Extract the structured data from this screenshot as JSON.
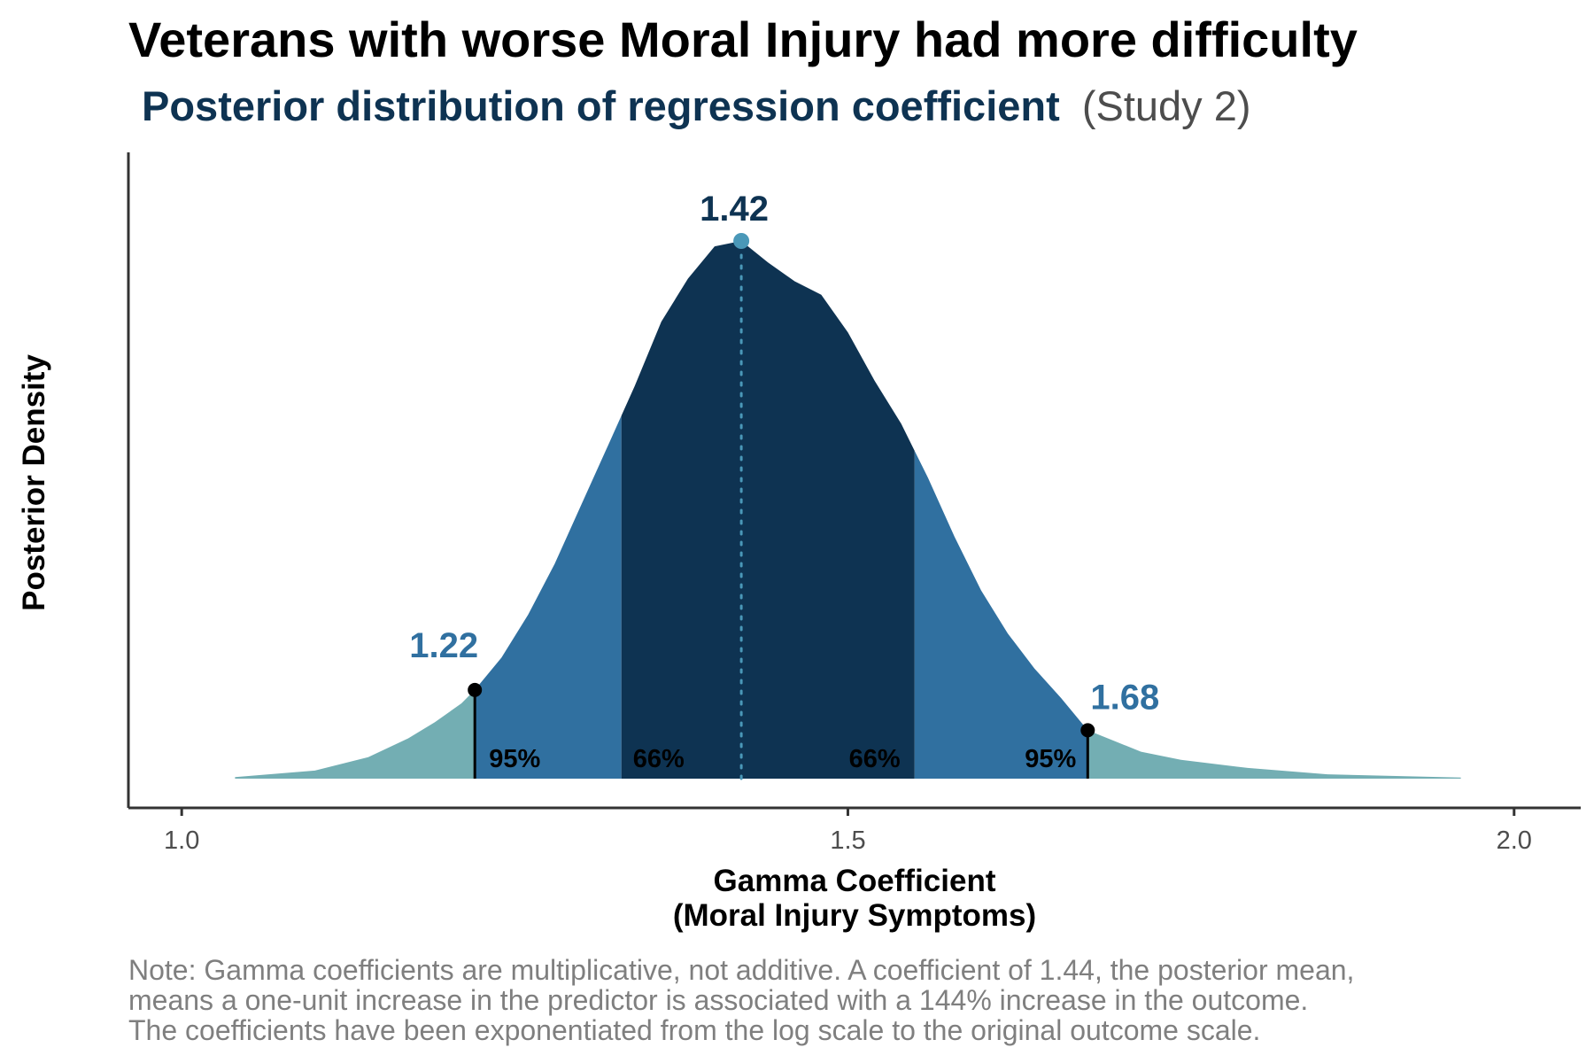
{
  "chart_data": {
    "type": "area",
    "title": "Veterans with worse Moral Injury had more difficulty",
    "subtitle_bold": "Posterior distribution of regression coefficient",
    "subtitle_plain": "(Study 2)",
    "xlabel_line1": "Gamma Coefficient",
    "xlabel_line2": "(Moral Injury Symptoms)",
    "ylabel": "Posterior Density",
    "xlim": [
      0.96,
      2.05
    ],
    "ylim": [
      0,
      1
    ],
    "x_ticks": [
      {
        "value": 1.0,
        "label": "1.0"
      },
      {
        "value": 1.5,
        "label": "1.5"
      },
      {
        "value": 2.0,
        "label": "2.0"
      }
    ],
    "density": {
      "x": [
        1.04,
        1.1,
        1.14,
        1.17,
        1.19,
        1.21,
        1.22,
        1.24,
        1.26,
        1.28,
        1.3,
        1.32,
        1.34,
        1.36,
        1.38,
        1.4,
        1.42,
        1.44,
        1.46,
        1.48,
        1.5,
        1.52,
        1.54,
        1.56,
        1.58,
        1.6,
        1.62,
        1.64,
        1.66,
        1.68,
        1.7,
        1.72,
        1.75,
        1.8,
        1.86,
        1.96
      ],
      "y": [
        0.003,
        0.015,
        0.04,
        0.075,
        0.105,
        0.14,
        0.165,
        0.225,
        0.305,
        0.4,
        0.51,
        0.62,
        0.73,
        0.85,
        0.93,
        0.99,
        1.0,
        0.96,
        0.925,
        0.9,
        0.83,
        0.74,
        0.66,
        0.56,
        0.45,
        0.35,
        0.27,
        0.205,
        0.15,
        0.09,
        0.07,
        0.05,
        0.035,
        0.02,
        0.008,
        0.002
      ]
    },
    "intervals": {
      "ci95": [
        1.22,
        1.68
      ],
      "ci66": [
        1.33,
        1.55
      ]
    },
    "median": 1.42,
    "median_label": "1.42",
    "lower_label": "1.22",
    "upper_label": "1.68",
    "pct95_label": "95%",
    "pct66_label": "66%",
    "colors": {
      "outer": "#73aeb3",
      "ci95": "#3070a0",
      "ci66": "#0e3352",
      "median_line": "#4a98b8",
      "median_dot": "#4a98b8",
      "median_label": "#0e3352",
      "bound_label": "#3070a0",
      "subtitle_bold": "#0e3352",
      "subtitle_plain": "#4d4d4d"
    },
    "note": [
      "Note: Gamma coefficients are multiplicative, not additive. A coefficient of 1.44, the posterior mean,",
      "means a one-unit increase in the predictor is associated with a 144% increase in the outcome.",
      "The coefficients have been exponentiated from the log scale to the original outcome scale."
    ]
  }
}
